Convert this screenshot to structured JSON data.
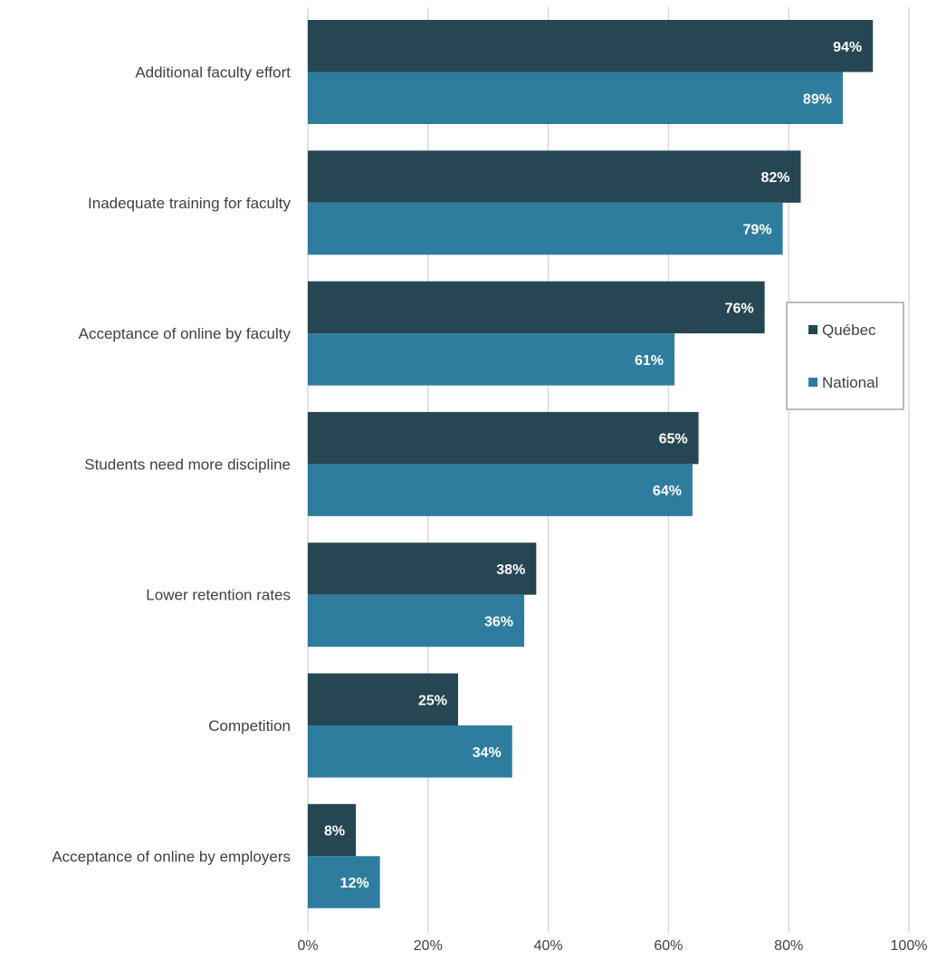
{
  "chart_data": {
    "type": "bar",
    "orientation": "horizontal",
    "categories": [
      "Additional faculty effort",
      "Inadequate training for faculty",
      "Acceptance of online by faculty",
      "Students need more discipline",
      "Lower retention rates",
      "Competition",
      "Acceptance of online by employers"
    ],
    "series": [
      {
        "name": "Québec",
        "values": [
          94,
          82,
          76,
          65,
          38,
          25,
          8
        ],
        "labels": [
          "94%",
          "82%",
          "76%",
          "65%",
          "38%",
          "25%",
          "8%"
        ],
        "color": "#264653"
      },
      {
        "name": "National",
        "values": [
          89,
          79,
          61,
          64,
          36,
          34,
          12
        ],
        "labels": [
          "89%",
          "79%",
          "61%",
          "64%",
          "36%",
          "34%",
          "12%"
        ],
        "color": "#2e7d9f"
      }
    ],
    "xlim": [
      0,
      100
    ],
    "xticks": [
      "0%",
      "20%",
      "40%",
      "60%",
      "80%",
      "100%"
    ],
    "grid": true,
    "legend": "right",
    "title": "",
    "xlabel": "",
    "ylabel": "",
    "gridline_color": "#d9d9d9",
    "legend_border_color": "#a6a6a6"
  }
}
